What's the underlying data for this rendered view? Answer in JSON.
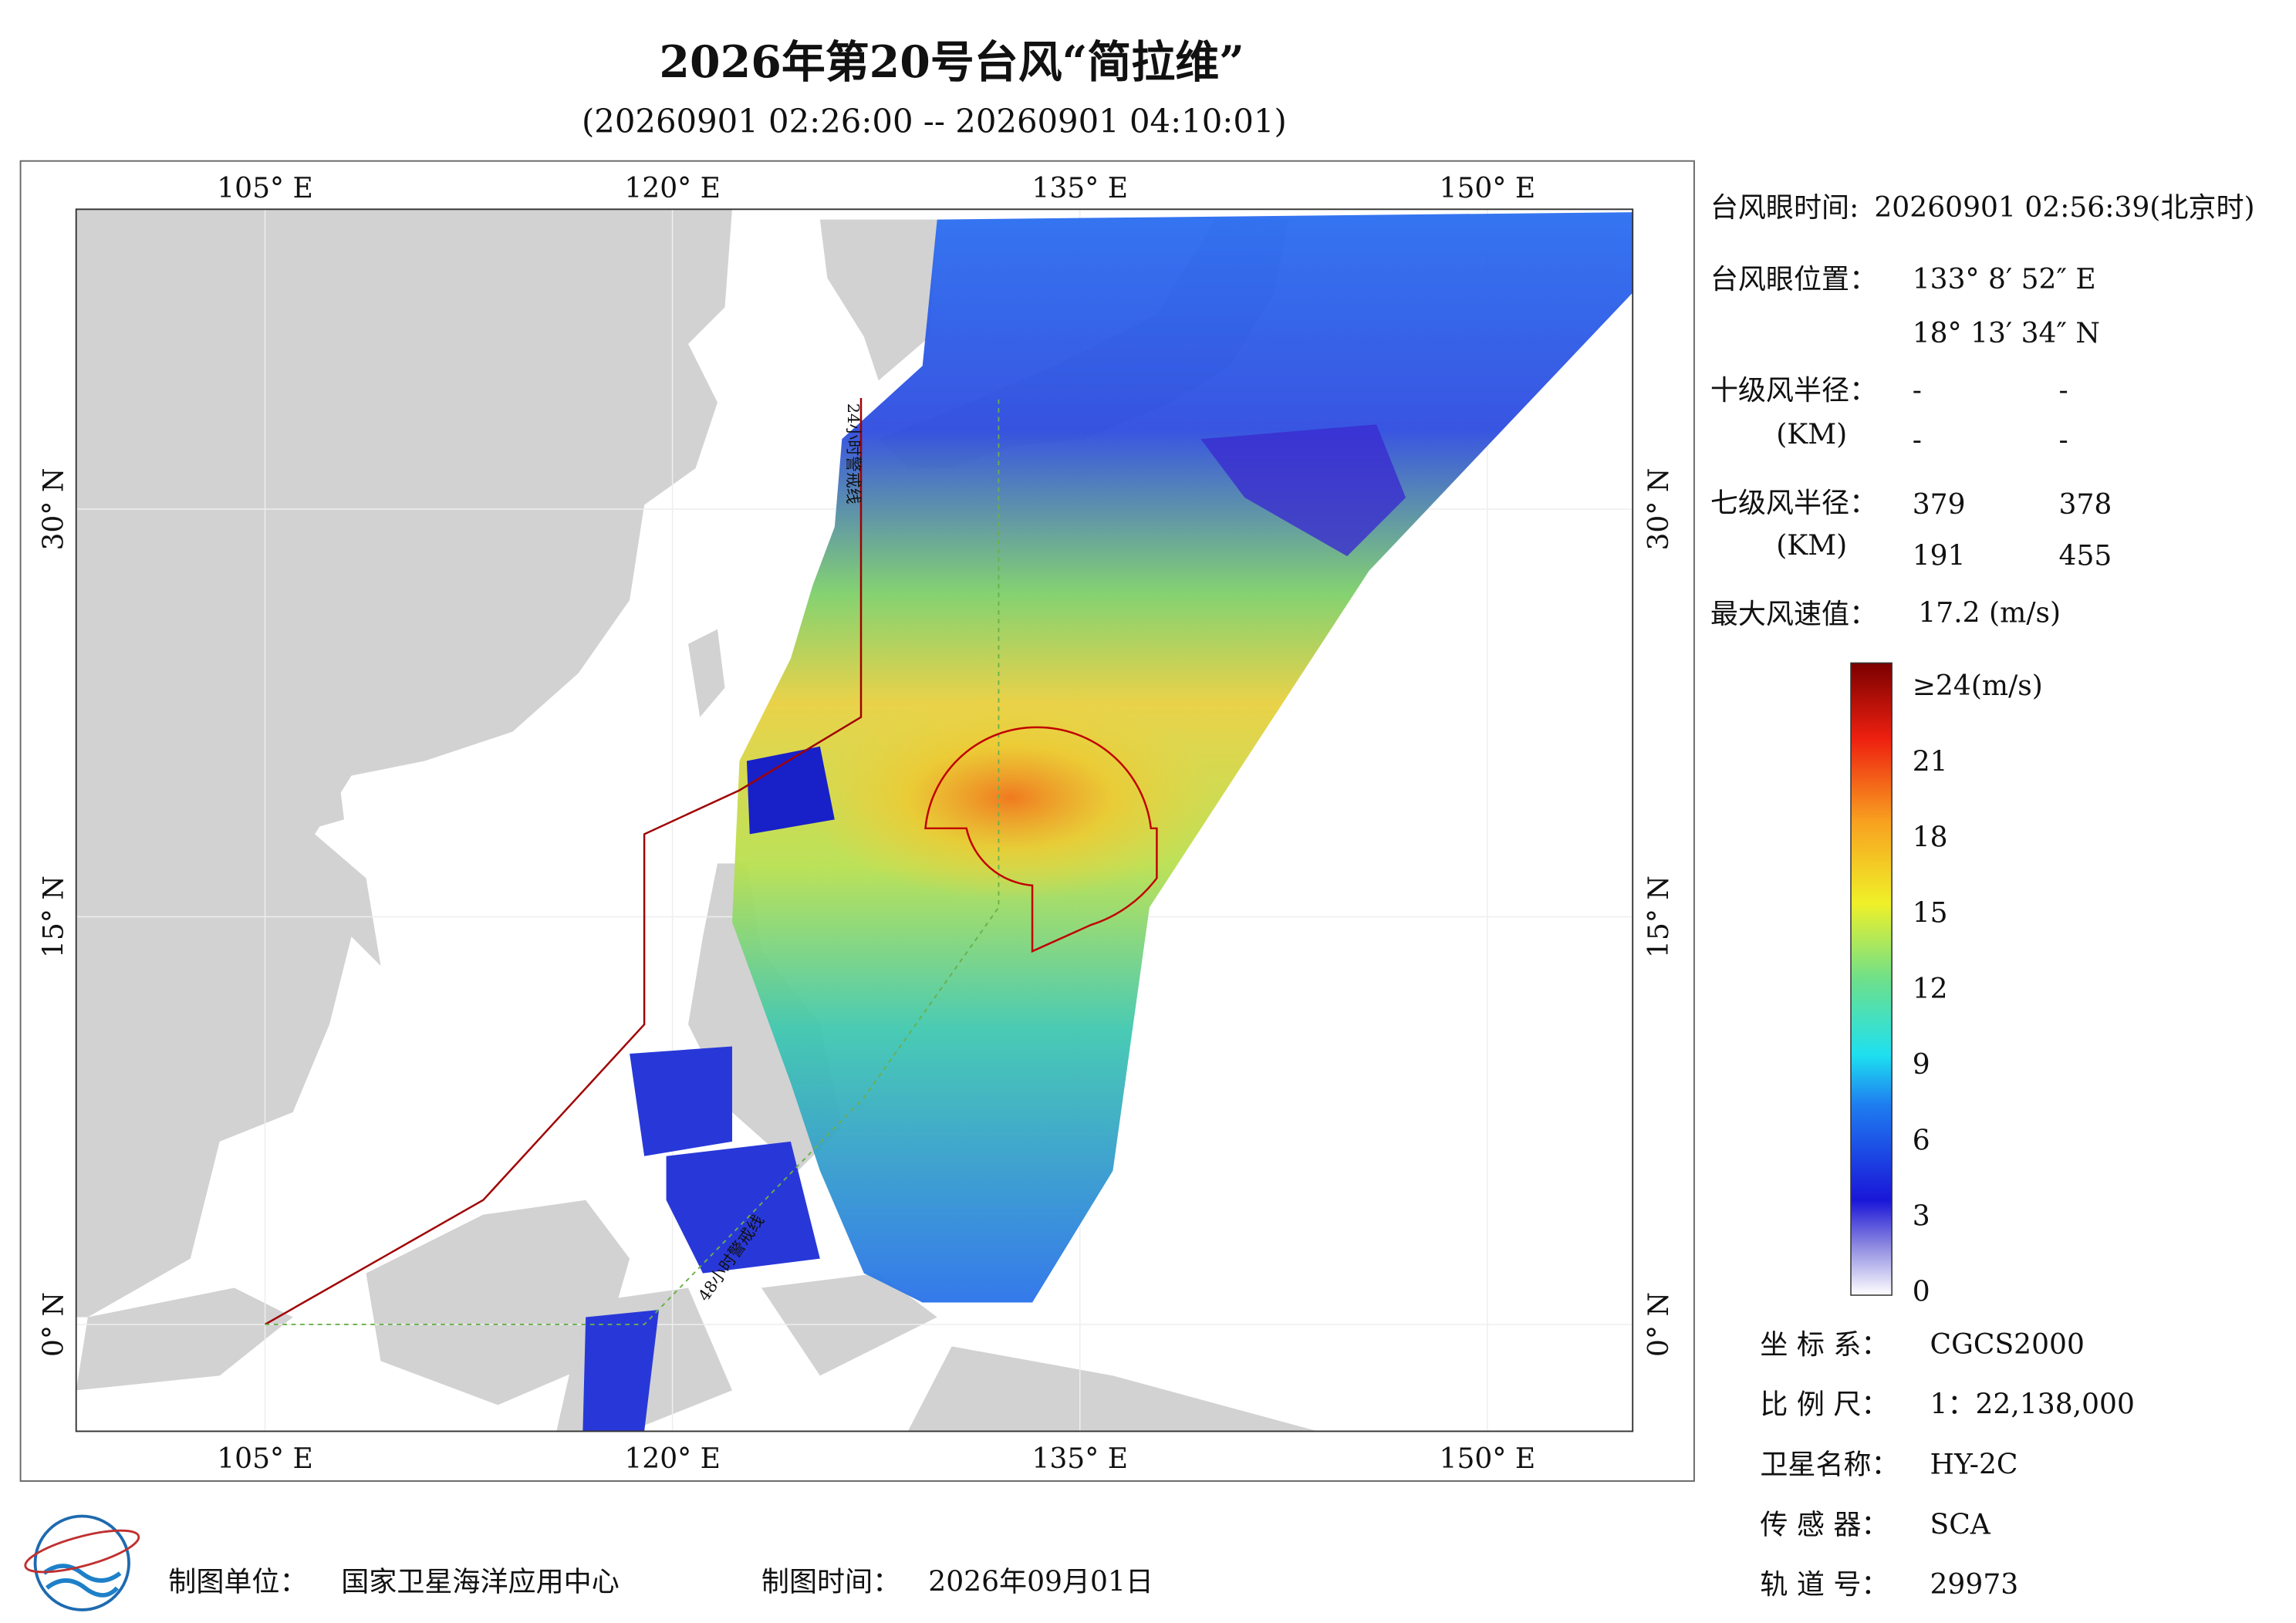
{
  "header": {
    "title": "2026年第20号台风“简拉维”",
    "subtitle": "(20260901 02:26:00 -- 20260901 04:10:01)"
  },
  "map": {
    "lon_ticks": [
      {
        "value": 105,
        "label": "105° E"
      },
      {
        "value": 120,
        "label": "120° E"
      },
      {
        "value": 135,
        "label": "135° E"
      },
      {
        "value": 150,
        "label": "150° E"
      }
    ],
    "lat_ticks": [
      {
        "value": 0,
        "label": "0° N"
      },
      {
        "value": 15,
        "label": "15° N"
      },
      {
        "value": 30,
        "label": "30° N"
      }
    ],
    "line_labels": [
      "24小时警戒线",
      "48小时警戒线"
    ]
  },
  "info": {
    "eye_time_label": "台风眼时间:",
    "eye_time": "20260901 02:56:39(北京时)",
    "eye_pos_label": "台风眼位置：",
    "eye_lon": "133° 8′ 52″ E",
    "eye_lat": "18° 13′ 34″ N",
    "r10_label": "十级风半径：",
    "r10_unit": "(KM)",
    "r10": [
      "-",
      "-",
      "-",
      "-"
    ],
    "r7_label": "七级风半径：",
    "r7_unit": "(KM)",
    "r7": [
      379,
      378,
      191,
      455
    ],
    "max_label": "最大风速值：",
    "max_value": "17.2  (m/s)"
  },
  "colorbar": {
    "range": [
      0,
      24
    ],
    "ticks": [
      0,
      3,
      6,
      9,
      12,
      15,
      18,
      21,
      {
        "value": 24,
        "label": "≥24(m/s)"
      }
    ]
  },
  "meta": [
    {
      "label": "坐 标 系：",
      "value": "CGCS2000"
    },
    {
      "label": "比 例 尺：",
      "value": "1：22,138,000"
    },
    {
      "label": "卫星名称：",
      "value": "HY-2C"
    },
    {
      "label": "传 感 器：",
      "value": "SCA"
    },
    {
      "label": "轨 道 号：",
      "value": "29973"
    }
  ],
  "footer": {
    "unit_label": "制图单位：",
    "unit": "国家卫星海洋应用中心",
    "time_label": "制图时间：",
    "time": "2026年09月01日"
  }
}
